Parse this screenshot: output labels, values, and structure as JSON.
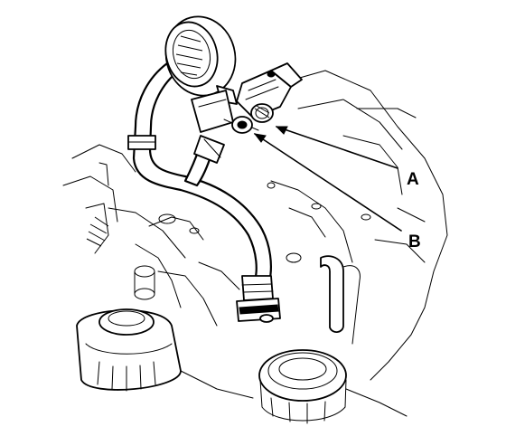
{
  "callouts": [
    {
      "id": "A",
      "label": "A"
    },
    {
      "id": "B",
      "label": "B"
    }
  ],
  "colors": {
    "line": "#000000",
    "background": "#ffffff"
  }
}
